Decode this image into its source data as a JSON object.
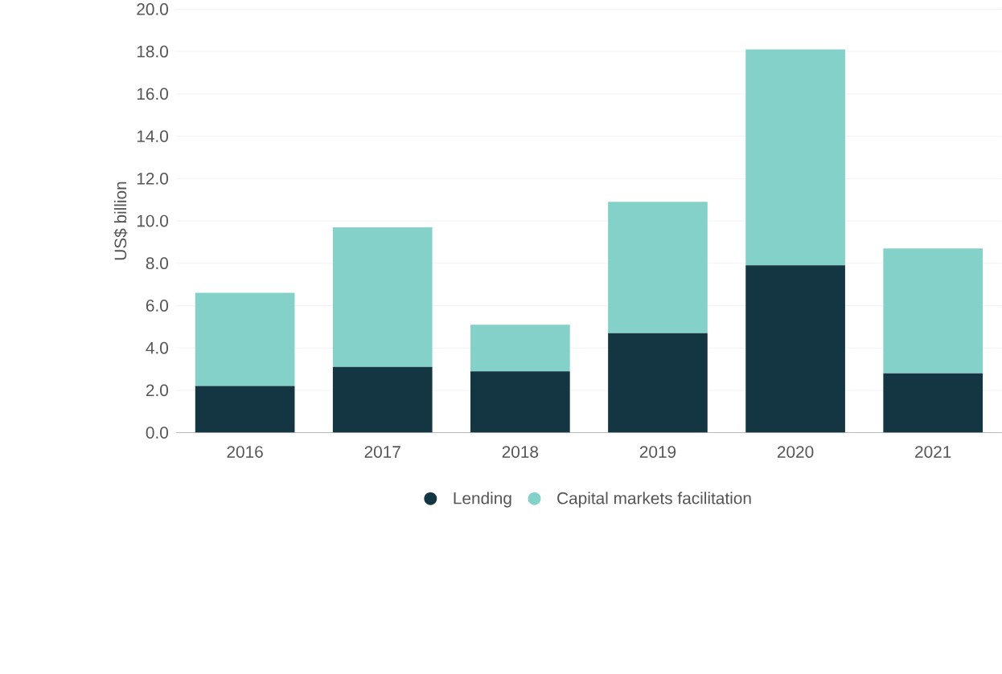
{
  "chart_data": {
    "type": "bar",
    "stacked": true,
    "ylabel": "US$ billion",
    "categories": [
      "2016",
      "2017",
      "2018",
      "2019",
      "2020",
      "2021"
    ],
    "series": [
      {
        "name": "Lending",
        "color": "#143642",
        "values": [
          2.2,
          3.1,
          2.9,
          4.7,
          7.9,
          2.8
        ]
      },
      {
        "name": "Capital markets facilitation",
        "color": "#84d1c9",
        "values": [
          4.4,
          6.6,
          2.2,
          6.2,
          10.2,
          5.9
        ]
      }
    ],
    "ylim": [
      0,
      20
    ],
    "yticks": [
      {
        "value": 0,
        "label": "0.0"
      },
      {
        "value": 2,
        "label": "2.0"
      },
      {
        "value": 4,
        "label": "4.0"
      },
      {
        "value": 6,
        "label": "6.0"
      },
      {
        "value": 8,
        "label": "8.0"
      },
      {
        "value": 10,
        "label": "10.0"
      },
      {
        "value": 12,
        "label": "12.0"
      },
      {
        "value": 14,
        "label": "14.0"
      },
      {
        "value": 16,
        "label": "16.0"
      },
      {
        "value": 18,
        "label": "18.0"
      },
      {
        "value": 20,
        "label": "20.0"
      }
    ],
    "grid": "y",
    "legend": "bottom"
  }
}
